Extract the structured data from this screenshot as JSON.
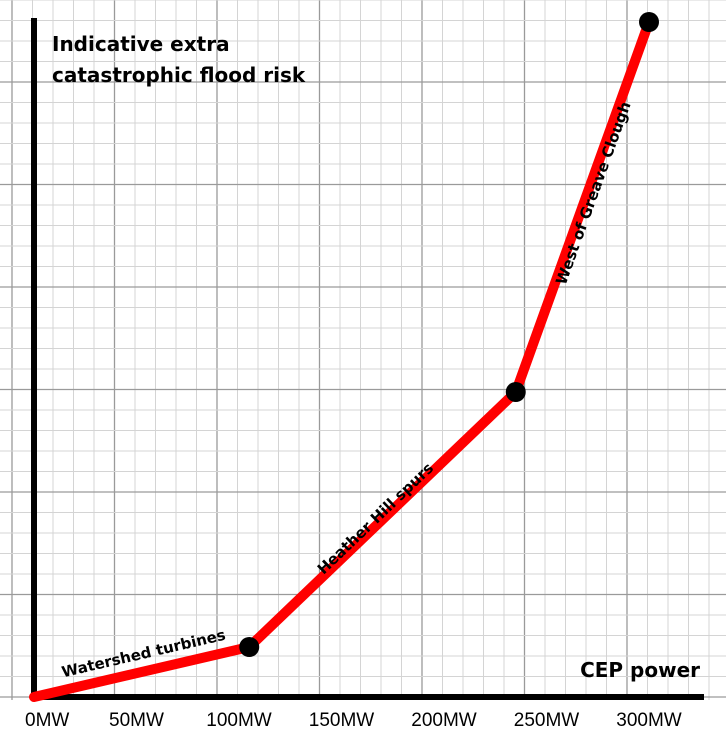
{
  "chart_data": {
    "type": "line",
    "title": "Indicative extra catastrophic flood risk",
    "title_lines": [
      "Indicative extra",
      "catastrophic flood risk"
    ],
    "xlabel": "CEP power",
    "ylabel": "",
    "x_ticks": [
      "0MW",
      "50MW",
      "100MW",
      "150MW",
      "200MW",
      "250MW",
      "300MW"
    ],
    "xlim": [
      0,
      330
    ],
    "ylim": [
      0,
      660
    ],
    "grid": true,
    "y_ticks_labeled": false,
    "line_color": "#ff0000",
    "axis_color": "#000000",
    "series": [
      {
        "points": [
          {
            "x": 0,
            "y": 0
          },
          {
            "x": 105,
            "y": 50
          },
          {
            "x": 235,
            "y": 305
          },
          {
            "x": 300,
            "y": 675
          }
        ],
        "markers_at": [
          1,
          2,
          3
        ]
      }
    ],
    "segment_labels": [
      {
        "text": "Watershed turbines"
      },
      {
        "text": "Heather Hill spurs"
      },
      {
        "text": "West of Greave Clough"
      }
    ]
  }
}
